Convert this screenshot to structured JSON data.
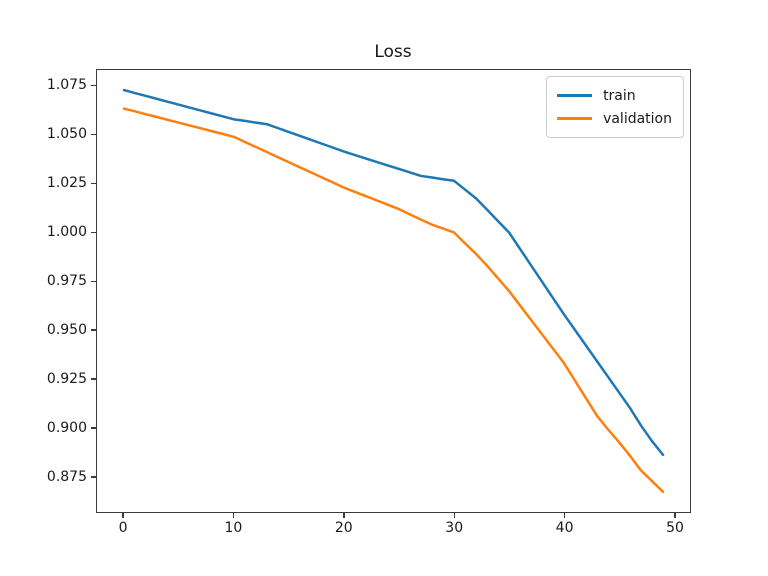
{
  "figure": {
    "background": "#ffffff",
    "text_color": "#1a1a1a",
    "spine_color": "#3c3c3c"
  },
  "chart_data": {
    "type": "line",
    "title": "Loss",
    "xlabel": "",
    "ylabel": "",
    "grid": false,
    "xlim": [
      -2.45,
      51.45
    ],
    "ylim": [
      0.8567,
      1.0833
    ],
    "xticks": [
      0,
      10,
      20,
      30,
      40,
      50
    ],
    "yticks": [
      1.075,
      1.05,
      1.025,
      1.0,
      0.975,
      0.95,
      0.925,
      0.9,
      0.875
    ],
    "legend": {
      "position": "upper right"
    },
    "x": [
      0,
      1,
      2,
      3,
      4,
      5,
      6,
      7,
      8,
      9,
      10,
      11,
      12,
      13,
      14,
      15,
      16,
      17,
      18,
      19,
      20,
      21,
      22,
      23,
      24,
      25,
      26,
      27,
      28,
      29,
      30,
      31,
      32,
      33,
      34,
      35,
      36,
      37,
      38,
      39,
      40,
      41,
      42,
      43,
      44,
      45,
      46,
      47,
      48,
      49
    ],
    "series": [
      {
        "name": "train",
        "color": "#1f77b4",
        "values": [
          1.073,
          1.0715,
          1.07,
          1.0685,
          1.067,
          1.0655,
          1.064,
          1.0625,
          1.061,
          1.0595,
          1.058,
          1.0572,
          1.0563,
          1.0555,
          1.0535,
          1.0515,
          1.0495,
          1.0475,
          1.0455,
          1.0435,
          1.0415,
          1.0397,
          1.0379,
          1.0361,
          1.0343,
          1.0326,
          1.0308,
          1.029,
          1.0282,
          1.0273,
          1.0265,
          1.022,
          1.0175,
          1.0117,
          1.0058,
          1.0,
          0.9916,
          0.9832,
          0.9748,
          0.9664,
          0.958,
          0.95,
          0.942,
          0.934,
          0.926,
          0.918,
          0.91,
          0.901,
          0.893,
          0.886
        ]
      },
      {
        "name": "validation",
        "color": "#ff7f0e",
        "values": [
          1.0635,
          1.0621,
          1.0606,
          1.0592,
          1.0577,
          1.0563,
          1.0548,
          1.0534,
          1.0519,
          1.0505,
          1.049,
          1.0464,
          1.0438,
          1.0412,
          1.0386,
          1.036,
          1.0334,
          1.0308,
          1.0282,
          1.0256,
          1.023,
          1.0208,
          1.0186,
          1.0164,
          1.0142,
          1.012,
          1.0092,
          1.0066,
          1.004,
          1.002,
          1.0,
          0.9945,
          0.989,
          0.983,
          0.9765,
          0.97,
          0.9626,
          0.9552,
          0.9478,
          0.9404,
          0.933,
          0.924,
          0.915,
          0.906,
          0.899,
          0.8925,
          0.8855,
          0.878,
          0.8725,
          0.867
        ]
      }
    ]
  }
}
